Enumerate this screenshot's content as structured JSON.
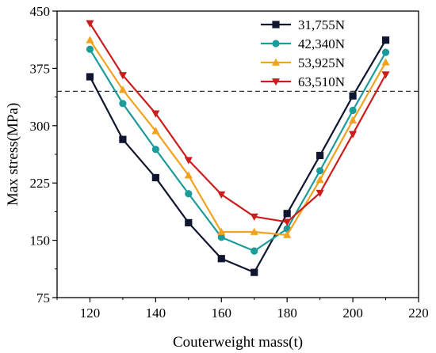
{
  "chart_data": {
    "type": "line",
    "xlabel": "Couterweight mass(t)",
    "ylabel": "Max stress(MPa)",
    "xlim": [
      110,
      220
    ],
    "ylim": [
      75,
      450
    ],
    "xticks": [
      120,
      140,
      160,
      180,
      200,
      220
    ],
    "yticks": [
      75,
      150,
      225,
      300,
      375,
      450
    ],
    "xtick_labels": [
      "120",
      "140",
      "160",
      "180",
      "200",
      "220"
    ],
    "ytick_labels": [
      "75",
      "150",
      "225",
      "300",
      "375",
      "450"
    ],
    "x": [
      120,
      130,
      140,
      150,
      160,
      170,
      180,
      190,
      200,
      210
    ],
    "reference_line": {
      "y": 345,
      "style": "dashed",
      "color": "#333333"
    },
    "legend_position": "top-right",
    "series": [
      {
        "name": "31,755N",
        "marker": "square",
        "color": "#101630",
        "values": [
          364,
          282,
          232,
          173,
          126,
          108,
          185,
          261,
          339,
          412
        ]
      },
      {
        "name": "42,340N",
        "marker": "circle",
        "color": "#1c9b9b",
        "values": [
          400,
          329,
          269,
          211,
          154,
          136,
          165,
          241,
          320,
          396
        ]
      },
      {
        "name": "53,925N",
        "marker": "triangle-up",
        "color": "#f3a21f",
        "values": [
          412,
          347,
          293,
          235,
          161,
          161,
          157,
          229,
          307,
          383
        ]
      },
      {
        "name": "63,510N",
        "marker": "triangle-down",
        "color": "#cc1d1d",
        "values": [
          434,
          366,
          316,
          255,
          210,
          181,
          174,
          212,
          289,
          367
        ]
      }
    ]
  }
}
